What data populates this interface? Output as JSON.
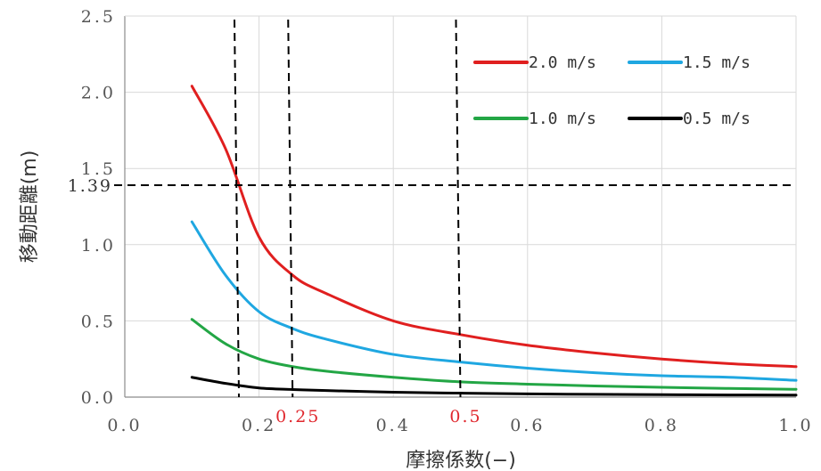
{
  "chart_data": {
    "type": "line",
    "xlabel": "摩擦係数(−)",
    "ylabel": "移動距離(m)",
    "xlim": [
      0.0,
      1.0
    ],
    "ylim": [
      0.0,
      2.5
    ],
    "x_ticks": [
      "0.0",
      "0.2",
      "0.4",
      "0.6",
      "0.8",
      "1.0"
    ],
    "y_ticks": [
      "0.0",
      "0.5",
      "1.0",
      "1.5",
      "2.0",
      "2.5"
    ],
    "grid": true,
    "legend_position": "top-right",
    "series": [
      {
        "name": "2.0 m/s",
        "color": "#e01f1f",
        "x": [
          0.1,
          0.15,
          0.2,
          0.25,
          0.3,
          0.4,
          0.5,
          0.6,
          0.7,
          0.8,
          0.9,
          1.0
        ],
        "y": [
          2.04,
          1.63,
          1.05,
          0.8,
          0.68,
          0.5,
          0.41,
          0.34,
          0.29,
          0.25,
          0.22,
          0.2
        ]
      },
      {
        "name": "1.5 m/s",
        "color": "#1fa7e1",
        "x": [
          0.1,
          0.15,
          0.2,
          0.25,
          0.3,
          0.4,
          0.5,
          0.6,
          0.7,
          0.8,
          0.9,
          1.0
        ],
        "y": [
          1.15,
          0.8,
          0.56,
          0.45,
          0.38,
          0.28,
          0.23,
          0.19,
          0.16,
          0.14,
          0.13,
          0.11
        ]
      },
      {
        "name": "1.0 m/s",
        "color": "#23a645",
        "x": [
          0.1,
          0.15,
          0.2,
          0.25,
          0.3,
          0.4,
          0.5,
          0.6,
          0.7,
          0.8,
          0.9,
          1.0
        ],
        "y": [
          0.51,
          0.35,
          0.25,
          0.2,
          0.17,
          0.13,
          0.1,
          0.085,
          0.073,
          0.064,
          0.057,
          0.051
        ]
      },
      {
        "name": "0.5 m/s",
        "color": "#000000",
        "x": [
          0.1,
          0.15,
          0.2,
          0.25,
          0.3,
          0.4,
          0.5,
          0.6,
          0.7,
          0.8,
          0.9,
          1.0
        ],
        "y": [
          0.13,
          0.09,
          0.06,
          0.05,
          0.043,
          0.032,
          0.026,
          0.021,
          0.018,
          0.016,
          0.014,
          0.013
        ]
      }
    ],
    "reference_lines": {
      "horizontal": [
        {
          "y": 1.39,
          "label": "1.39"
        }
      ],
      "vertical": [
        {
          "x": 0.17,
          "label": ""
        },
        {
          "x": 0.25,
          "label": "0.25"
        },
        {
          "x": 0.5,
          "label": "0.5"
        }
      ]
    },
    "annotation_color": "#e0282e"
  }
}
